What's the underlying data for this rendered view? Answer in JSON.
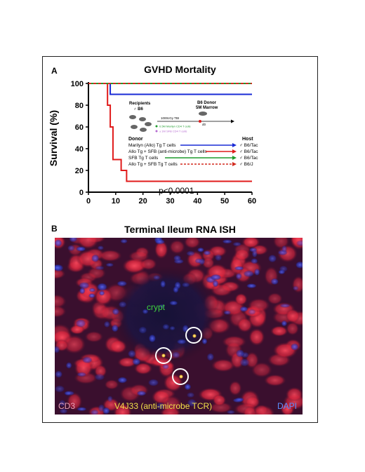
{
  "panel_a": {
    "letter": "A",
    "title": "GVHD Mortality",
    "ylabel": "Survival (%)",
    "pvalue": "p<0.0001",
    "inset": {
      "recipients": "Recipients",
      "recipients_strain": "♂ B6",
      "donor_title": "B6 Donor",
      "donor_marrow": "5M Marrow",
      "tbi": "1000cGy TBI",
      "day": "d0",
      "dose1": "0.5M Marilyn CD4 T cells",
      "dose2": "± 1M SFB CD4 T cells"
    },
    "legend": {
      "donor_header": "Donor",
      "host_header": "Host",
      "rows": [
        {
          "donor": "Marilyn (Allo) Tg T cells",
          "host": "♂ B6/Tac",
          "color": "#1a2bd6",
          "dashed": false
        },
        {
          "donor": "Allo Tg + SFB (anti-microbe) Tg T cells",
          "host": "♂ B6/Tac",
          "color": "#e01b1b",
          "dashed": false
        },
        {
          "donor": "SFB Tg T cells",
          "host": "♂ B6/Tac",
          "color": "#1f9c2d",
          "dashed": false
        },
        {
          "donor": "Allo Tg + SFB Tg T cells",
          "host": "♂ B6/J",
          "color": "#d22a1e",
          "dashed": true
        }
      ]
    }
  },
  "chart_data": {
    "type": "line",
    "title": "GVHD Mortality",
    "xlabel": "",
    "ylabel": "Survival (%)",
    "xlim": [
      0,
      60
    ],
    "ylim": [
      0,
      100
    ],
    "xticks": [
      0,
      10,
      20,
      30,
      40,
      50,
      60
    ],
    "yticks": [
      0,
      20,
      40,
      60,
      80,
      100
    ],
    "series": [
      {
        "name": "Marilyn (Allo) Tg T cells",
        "color": "#1a2bd6",
        "dashed": false,
        "x": [
          0,
          8,
          8,
          60
        ],
        "y": [
          100,
          100,
          90,
          90
        ]
      },
      {
        "name": "Allo Tg + SFB (anti-microbe) Tg T cells",
        "color": "#e01b1b",
        "dashed": false,
        "x": [
          0,
          7,
          7,
          8,
          8,
          9,
          9,
          12,
          12,
          14,
          14,
          60
        ],
        "y": [
          100,
          100,
          80,
          80,
          60,
          60,
          30,
          30,
          20,
          20,
          10,
          10
        ]
      },
      {
        "name": "SFB Tg T cells",
        "color": "#1f9c2d",
        "dashed": false,
        "x": [
          0,
          60
        ],
        "y": [
          100,
          100
        ]
      },
      {
        "name": "Allo Tg + SFB Tg T cells",
        "color": "#d22a1e",
        "dashed": true,
        "x": [
          0,
          60
        ],
        "y": [
          100,
          100
        ]
      }
    ]
  },
  "panel_b": {
    "letter": "B",
    "title": "Terminal Ileum RNA ISH",
    "crypt": "crypt",
    "cd3": "CD3",
    "probe": "V4J33 (anti-microbe TCR)",
    "dapi": "DAPI",
    "colors": {
      "cd3": "#e83a5a",
      "probe": "#f2e04a",
      "dapi": "#3c4fe6",
      "crypt": "#3fd13f"
    }
  }
}
